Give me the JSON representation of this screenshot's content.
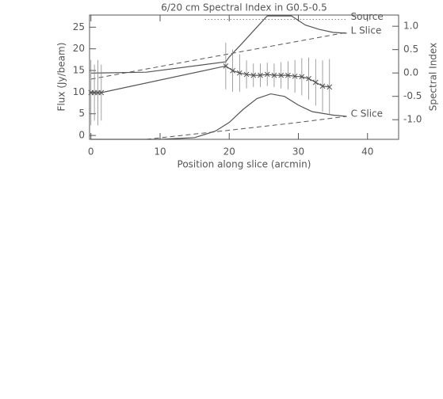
{
  "chart_data": {
    "type": "line",
    "title": "6/20 cm Spectral Index in G0.5-0.5",
    "x_label": "Position along slice (arcmin)",
    "y_label": "Flux (Jy/beam)",
    "y2_label": "Spectral Index",
    "xlim": [
      -0.2,
      44.5
    ],
    "xticks": [
      0,
      10,
      20,
      30,
      40
    ],
    "ylim": [
      -0.9,
      27.8
    ],
    "yticks": [
      0,
      5,
      10,
      15,
      20,
      25
    ],
    "y2lim": [
      -1.42,
      1.24
    ],
    "y2ticks": [
      {
        "value": 1.0,
        "label": "1.0"
      },
      {
        "value": 0.5,
        "label": "0.5"
      },
      {
        "value": 0.0,
        "label": "0.0"
      },
      {
        "value": -0.5,
        "label": "-0.5"
      },
      {
        "value": -1.0,
        "label": "-1.0"
      }
    ],
    "color": "#555555",
    "series": [
      {
        "name": "L Slice",
        "style": "solid",
        "x": [
          0,
          8,
          19.5,
          20,
          22,
          24,
          25.5,
          29,
          31,
          33,
          35,
          37
        ],
        "values": [
          14.4,
          14.6,
          17.0,
          18.1,
          21.5,
          25,
          27.6,
          27.6,
          25.5,
          24.5,
          23.8,
          23.6
        ]
      },
      {
        "style": "dashed",
        "x": [
          0,
          37
        ],
        "values": [
          13.0,
          23.8
        ]
      },
      {
        "name": "C Slice",
        "style": "solid",
        "x": [
          0,
          10,
          15,
          18,
          20,
          22,
          24,
          26,
          28,
          30,
          32,
          35,
          37
        ],
        "values": [
          -0.9,
          -0.9,
          -0.5,
          1,
          3,
          6,
          8.5,
          9.6,
          9,
          7,
          5.5,
          4.7,
          4.4
        ]
      },
      {
        "style": "dashed",
        "x": [
          0,
          8,
          20,
          30,
          37
        ],
        "values": [
          -0.9,
          -0.9,
          1.2,
          3,
          4.4
        ]
      },
      {
        "name": "Source",
        "style": "dotted",
        "x": [
          16.5,
          37
        ],
        "values": [
          26.8,
          26.8
        ]
      },
      {
        "style": "solid",
        "axis": "y2",
        "markers": true,
        "x": [
          0,
          0.5,
          1,
          1.5,
          19.5,
          20.5,
          21.5,
          22.5,
          23.5,
          24.5,
          25.5,
          26.5,
          27.5,
          28.5,
          29.5,
          30.5,
          31.5,
          32.5,
          33.5,
          34.5
        ],
        "values": [
          -0.42,
          -0.42,
          -0.42,
          -0.42,
          0.15,
          0.05,
          0.0,
          -0.03,
          -0.05,
          -0.05,
          -0.03,
          -0.05,
          -0.05,
          -0.05,
          -0.07,
          -0.08,
          -0.12,
          -0.2,
          -0.28,
          -0.3
        ],
        "errors": [
          0.7,
          0.6,
          0.7,
          0.6,
          0.5,
          0.45,
          0.4,
          0.3,
          0.25,
          0.25,
          0.25,
          0.25,
          0.28,
          0.3,
          0.35,
          0.4,
          0.45,
          0.5,
          0.55,
          0.6
        ]
      }
    ]
  }
}
